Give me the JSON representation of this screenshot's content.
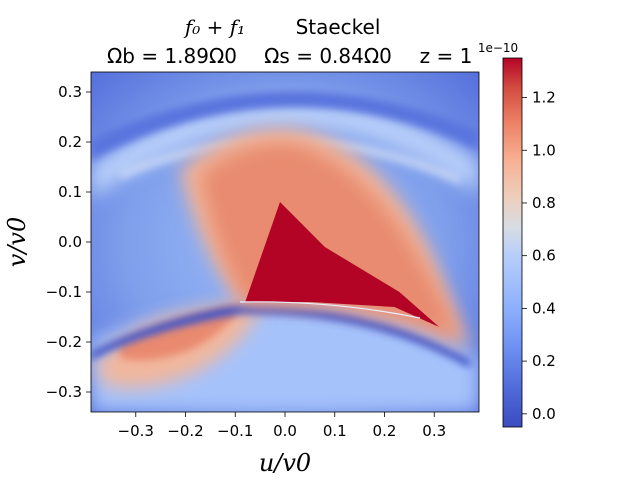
{
  "chart_data": {
    "type": "heatmap",
    "title": {
      "line1_math": "f₀ + f₁",
      "line1_model": "Staeckel",
      "omega_b": "Ωb = 1.89Ω0",
      "omega_s": "Ωs = 0.84Ω0",
      "z": "z = 1"
    },
    "xlabel": "u/v0",
    "ylabel": "v/v0",
    "xlim": [
      -0.39,
      0.39
    ],
    "ylim": [
      -0.34,
      0.34
    ],
    "x_ticks": [
      -0.3,
      -0.2,
      -0.1,
      0.0,
      0.1,
      0.2,
      0.3
    ],
    "x_tick_labels": [
      "−0.3",
      "−0.2",
      "−0.1",
      "0.0",
      "0.1",
      "0.2",
      "0.3"
    ],
    "y_ticks": [
      0.3,
      0.2,
      0.1,
      0.0,
      -0.1,
      -0.2,
      -0.3
    ],
    "y_tick_labels": [
      "0.3",
      "0.2",
      "0.1",
      "0.0",
      "−0.1",
      "−0.2",
      "−0.3"
    ],
    "colorbar": {
      "range": [
        -0.05,
        1.35
      ],
      "ticks": [
        0.0,
        0.2,
        0.4,
        0.6,
        0.8,
        1.0,
        1.2
      ],
      "tick_labels": [
        "0.0",
        "0.2",
        "0.4",
        "0.6",
        "0.8",
        "1.0",
        "1.2"
      ],
      "offset_label": "1e−10",
      "colormap": "coolwarm"
    },
    "features": [
      {
        "name": "saturated core (value above 1.3e-10)",
        "vertices_uv": [
          [
            -0.08,
            -0.12
          ],
          [
            -0.01,
            0.08
          ],
          [
            0.08,
            -0.01
          ],
          [
            0.23,
            -0.1
          ],
          [
            0.31,
            -0.17
          ],
          [
            0.22,
            -0.13
          ],
          [
            0.05,
            -0.12
          ]
        ]
      },
      {
        "name": "low-value arc (upper)",
        "center_v": 0.21
      },
      {
        "name": "low-value arc (lower)",
        "center_v": -0.14
      }
    ]
  }
}
